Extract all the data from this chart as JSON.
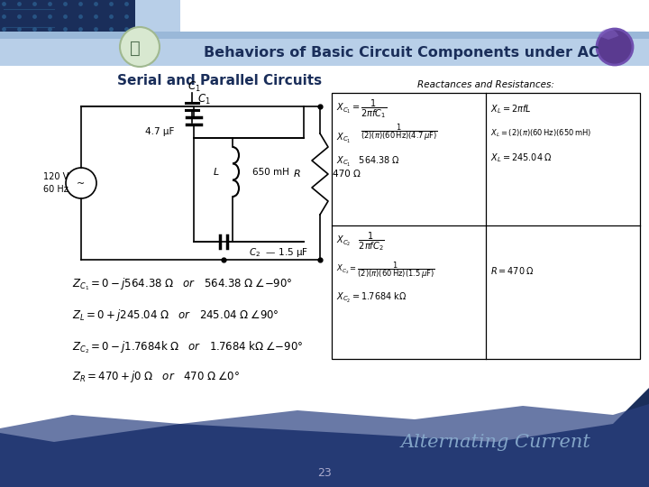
{
  "title": "Behaviors of Basic Circuit Components under AC",
  "subtitle": "Serial and Parallel Circuits",
  "page_number": "23",
  "watermark": "Alternating Current",
  "table_title": "Reactances and Resistances:",
  "header_bg": "#b8cfe8",
  "dark_bg": "#1a2e5a",
  "mid_bg": "#2a4080"
}
